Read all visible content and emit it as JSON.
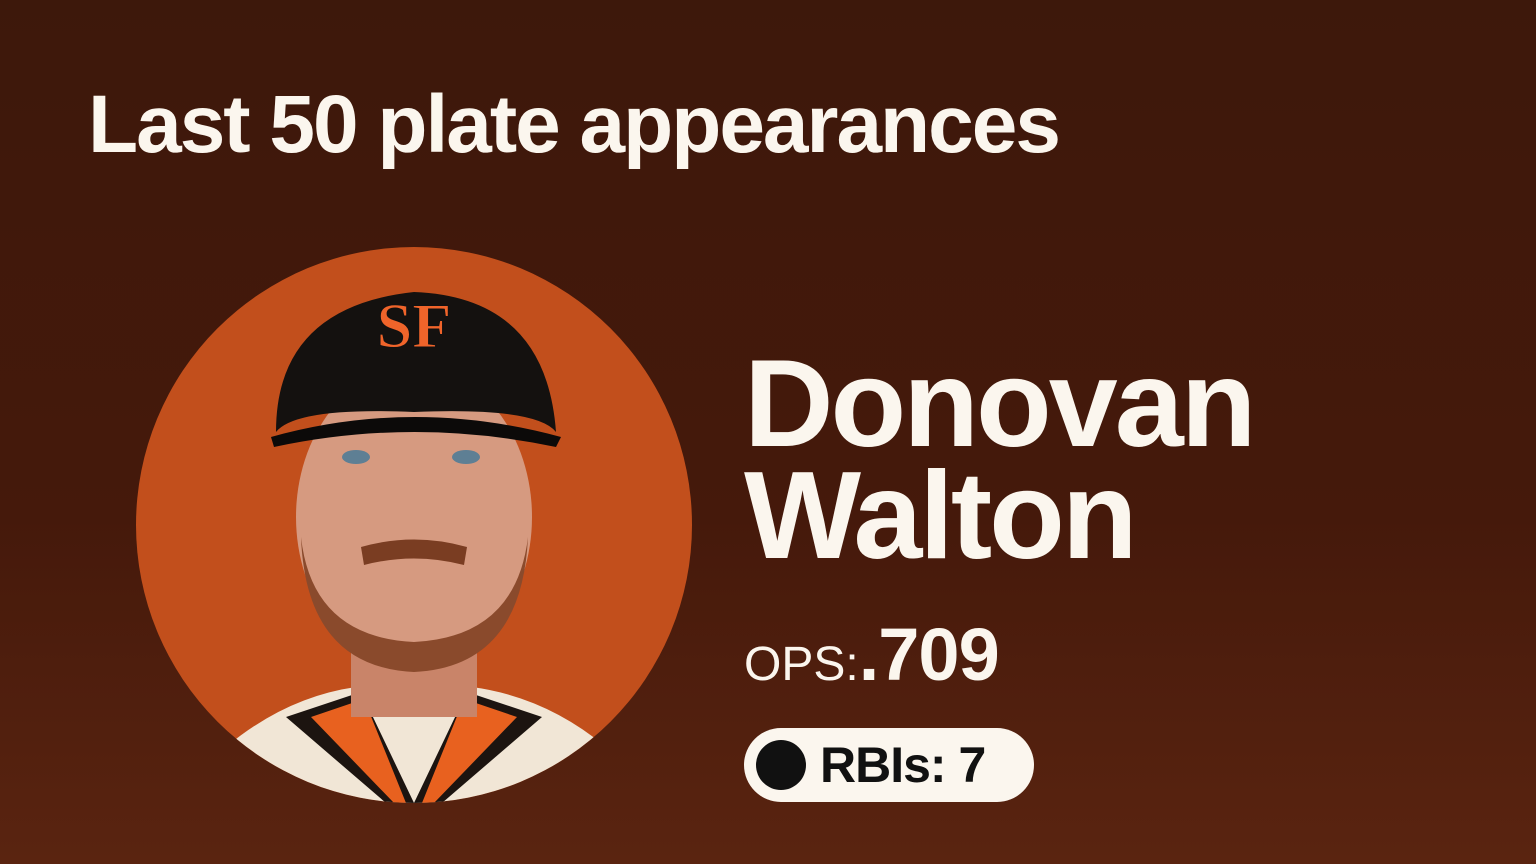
{
  "title": "Last 50 plate appearances",
  "player": {
    "first_name": "Donovan",
    "last_name": "Walton",
    "cap_logo": "SF",
    "ops_label": "OPS:",
    "ops_value": ".709",
    "rbis_label": "RBIs: 7"
  },
  "colors": {
    "background": "#3d180b",
    "photo_circle": "#c24f1c",
    "text": "#fbf6ee",
    "cap_logo": "#f0642a"
  }
}
